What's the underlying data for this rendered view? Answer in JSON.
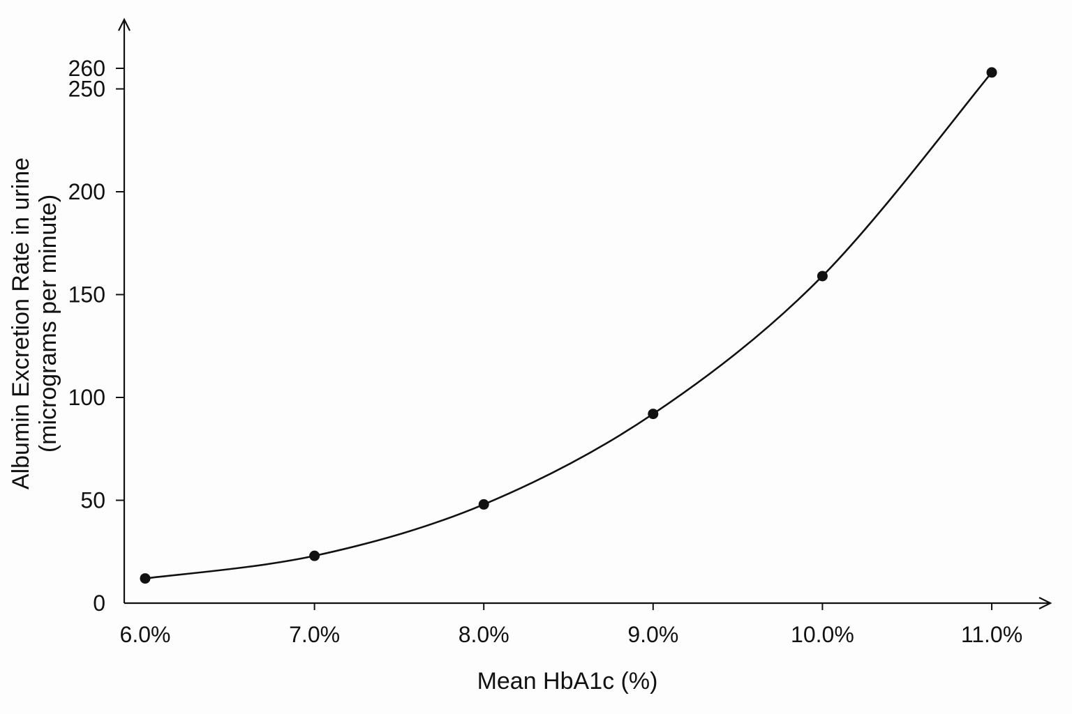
{
  "chart_data": {
    "type": "line",
    "title": "",
    "xlabel": "Mean HbA1c (%)",
    "ylabel_line1": "Albumin Excretion Rate in urine",
    "ylabel_line2": "(micrograms per minute)",
    "x_tick_labels": [
      "6.0%",
      "7.0%",
      "8.0%",
      "9.0%",
      "10.0%",
      "11.0%"
    ],
    "y_tick_labels": [
      "0",
      "50",
      "100",
      "150",
      "200",
      "250",
      "260"
    ],
    "y_ticks": [
      0,
      50,
      100,
      150,
      200,
      250,
      260
    ],
    "x": [
      6.0,
      7.0,
      8.0,
      9.0,
      10.0,
      11.0
    ],
    "series": [
      {
        "values": [
          12,
          23,
          48,
          92,
          159,
          258
        ]
      }
    ],
    "ylim": [
      0,
      260
    ],
    "grid": false,
    "smooth_curve": true,
    "marker": "filled-circle",
    "colors": {
      "line": "#111111",
      "marker": "#111111",
      "background": "#fdfdfd"
    }
  }
}
